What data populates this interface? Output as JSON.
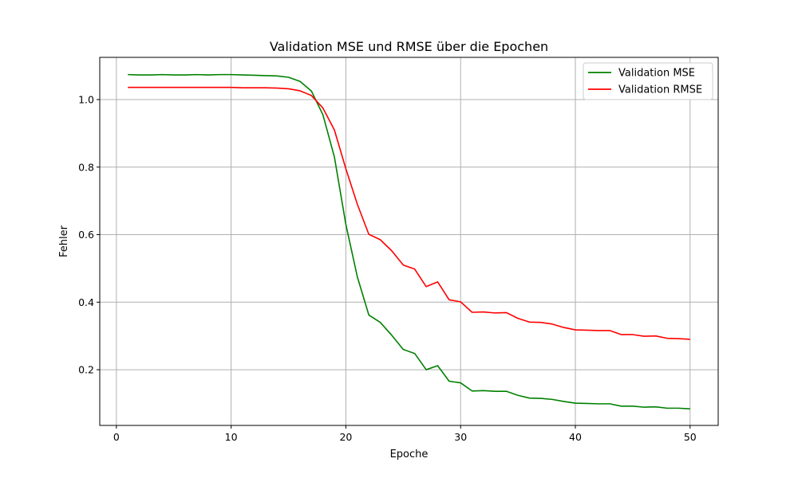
{
  "chart_data": {
    "type": "line",
    "title": "Validation MSE und RMSE über die Epochen",
    "xlabel": "Epoche",
    "ylabel": "Fehler",
    "xlim": [
      -1.45,
      52.45
    ],
    "ylim": [
      0.035,
      1.125
    ],
    "xticks": [
      0,
      10,
      20,
      30,
      40,
      50
    ],
    "yticks": [
      0.2,
      0.4,
      0.6,
      0.8,
      1.0
    ],
    "ytick_labels": [
      "0.2",
      "0.4",
      "0.6",
      "0.8",
      "1.0"
    ],
    "grid": true,
    "legend_position": "top-right",
    "x": [
      1,
      2,
      3,
      4,
      5,
      6,
      7,
      8,
      9,
      10,
      11,
      12,
      13,
      14,
      15,
      16,
      17,
      18,
      19,
      20,
      21,
      22,
      23,
      24,
      25,
      26,
      27,
      28,
      29,
      30,
      31,
      32,
      33,
      34,
      35,
      36,
      37,
      38,
      39,
      40,
      41,
      42,
      43,
      44,
      45,
      46,
      47,
      48,
      49,
      50
    ],
    "series": [
      {
        "name": "Validation MSE",
        "color": "#008000",
        "values": [
          1.074,
          1.073,
          1.073,
          1.074,
          1.073,
          1.073,
          1.074,
          1.073,
          1.074,
          1.074,
          1.073,
          1.072,
          1.071,
          1.07,
          1.066,
          1.054,
          1.025,
          0.955,
          0.83,
          0.63,
          0.475,
          0.362,
          0.34,
          0.302,
          0.26,
          0.248,
          0.2,
          0.212,
          0.166,
          0.161,
          0.137,
          0.138,
          0.136,
          0.136,
          0.124,
          0.116,
          0.115,
          0.112,
          0.106,
          0.101,
          0.1,
          0.099,
          0.099,
          0.092,
          0.092,
          0.089,
          0.09,
          0.086,
          0.086,
          0.084
        ]
      },
      {
        "name": "Validation RMSE",
        "color": "#ff0000",
        "values": [
          1.036,
          1.036,
          1.036,
          1.036,
          1.036,
          1.036,
          1.036,
          1.036,
          1.036,
          1.036,
          1.035,
          1.035,
          1.035,
          1.034,
          1.032,
          1.026,
          1.012,
          0.975,
          0.91,
          0.795,
          0.69,
          0.601,
          0.585,
          0.552,
          0.51,
          0.498,
          0.446,
          0.46,
          0.407,
          0.401,
          0.37,
          0.371,
          0.368,
          0.369,
          0.352,
          0.341,
          0.34,
          0.335,
          0.325,
          0.318,
          0.317,
          0.316,
          0.316,
          0.304,
          0.304,
          0.299,
          0.3,
          0.293,
          0.292,
          0.29
        ]
      }
    ]
  }
}
